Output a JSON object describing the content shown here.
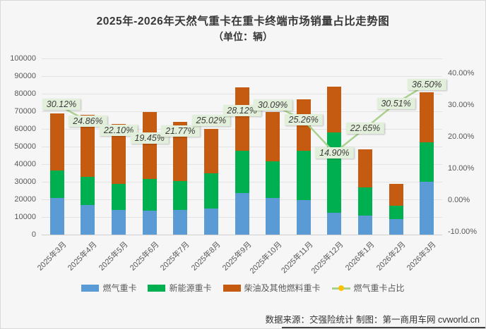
{
  "title": {
    "line1": "2025年-2026年天然气重卡在重卡终端市场销量占比走势图",
    "line2": "（单位：辆）"
  },
  "chart_data": {
    "type": "bar",
    "subtype": "stacked-bars-with-percentage-line",
    "categories": [
      "2025年3月",
      "2025年4月",
      "2025年5月",
      "2025年6月",
      "2025年7月",
      "2025年8月",
      "2025年9月",
      "2025年10月",
      "2025年11月",
      "2025年12月",
      "2026年1月",
      "2026年2月",
      "2026年3月"
    ],
    "series": [
      {
        "name": "燃气重卡",
        "type": "bar",
        "color": "#5b9bd5",
        "values": [
          21000,
          17000,
          14000,
          13500,
          14000,
          15000,
          23500,
          21000,
          19500,
          12500,
          11000,
          8800,
          30000
        ]
      },
      {
        "name": "新能源重卡",
        "type": "bar",
        "color": "#00b050",
        "values": [
          15500,
          16000,
          15000,
          18000,
          16500,
          20000,
          24000,
          20500,
          28000,
          45500,
          16000,
          7700,
          22500
        ]
      },
      {
        "name": "柴油及其他燃料重卡",
        "type": "bar",
        "color": "#c55a11",
        "values": [
          32500,
          35000,
          34000,
          38000,
          33500,
          25000,
          36000,
          28000,
          29500,
          26000,
          21500,
          12500,
          28500
        ]
      },
      {
        "name": "燃气重卡占比",
        "type": "line",
        "axis": "right",
        "color": "#a9d18e",
        "marker_color": "#ffc000",
        "values": [
          30.12,
          24.86,
          22.1,
          19.45,
          21.77,
          25.02,
          28.12,
          30.09,
          25.26,
          14.9,
          22.65,
          30.51,
          36.5
        ],
        "labels": [
          "30.12%",
          "24.86%",
          "22.10%",
          "19.45%",
          "21.77%",
          "25.02%",
          "28.12%",
          "30.09%",
          "25.26%",
          "14.90%",
          "22.65%",
          "30.51%",
          "36.50%"
        ]
      }
    ],
    "left_axis": {
      "min": 0,
      "max": 100000,
      "step": 10000,
      "tick_labels": [
        "0",
        "10000",
        "20000",
        "30000",
        "40000",
        "50000",
        "60000",
        "70000",
        "80000",
        "90000",
        "100000"
      ]
    },
    "right_axis": {
      "tick_values": [
        40,
        30,
        20,
        10,
        0,
        -10
      ],
      "tick_labels": [
        "40.00%",
        "30.00%",
        "20.00%",
        "10.00%",
        "0.00%",
        "-10.00%"
      ]
    },
    "grid": true,
    "legend_position": "bottom"
  },
  "label_box_color": "#e2efda",
  "footer": {
    "text": "数据来源：交强险统计 制图：第一商用车网 cvworld.cn"
  }
}
